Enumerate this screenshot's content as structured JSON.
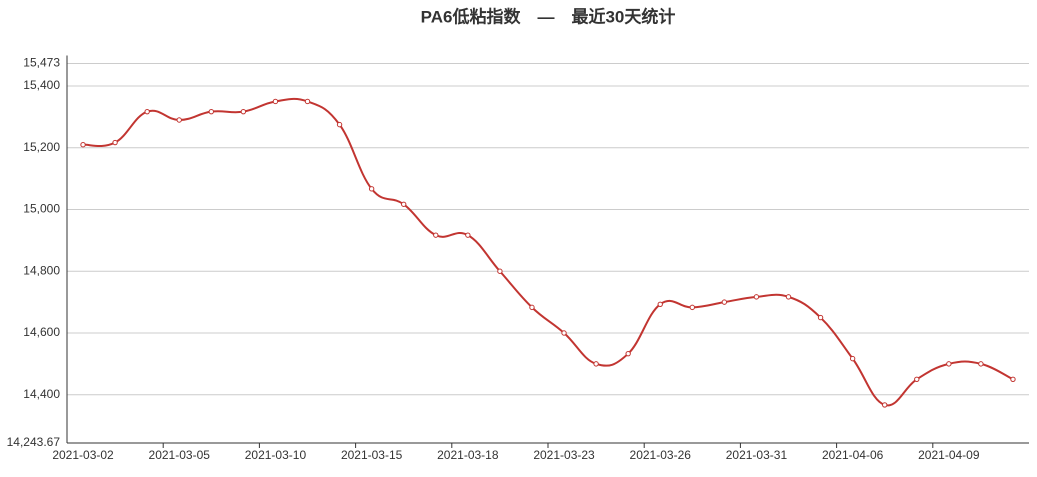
{
  "chart_data": {
    "type": "line",
    "title": "PA6低粘指数　—　最近30天统计",
    "categories": [
      "2021-03-02",
      null,
      null,
      "2021-03-05",
      null,
      null,
      "2021-03-10",
      null,
      null,
      "2021-03-15",
      null,
      null,
      "2021-03-18",
      null,
      null,
      "2021-03-23",
      null,
      null,
      "2021-03-26",
      null,
      null,
      "2021-03-31",
      null,
      null,
      "2021-04-06",
      null,
      null,
      "2021-04-09",
      null,
      null
    ],
    "series": [
      {
        "name": "PA6低粘指数",
        "color": "#c23531",
        "values": [
          15210,
          15217,
          15317,
          15290,
          15317,
          15317,
          15350,
          15350,
          15275,
          15067,
          15017,
          14917,
          14917,
          14800,
          14683,
          14600,
          14500,
          14533,
          14693,
          14683,
          14700,
          14717,
          14717,
          14650,
          14517,
          14367,
          14450,
          14500,
          14500,
          14450
        ]
      }
    ],
    "ylim": [
      14243.67,
      15473
    ],
    "yticks": [
      {
        "value": 14243.67,
        "label": "14,243.67"
      },
      {
        "value": 14400,
        "label": "14,400"
      },
      {
        "value": 14600,
        "label": "14,600"
      },
      {
        "value": 14800,
        "label": "14,800"
      },
      {
        "value": 15000,
        "label": "15,000"
      },
      {
        "value": 15200,
        "label": "15,200"
      },
      {
        "value": 15400,
        "label": "15,400"
      },
      {
        "value": 15473,
        "label": "15,473"
      }
    ],
    "grid": true
  }
}
